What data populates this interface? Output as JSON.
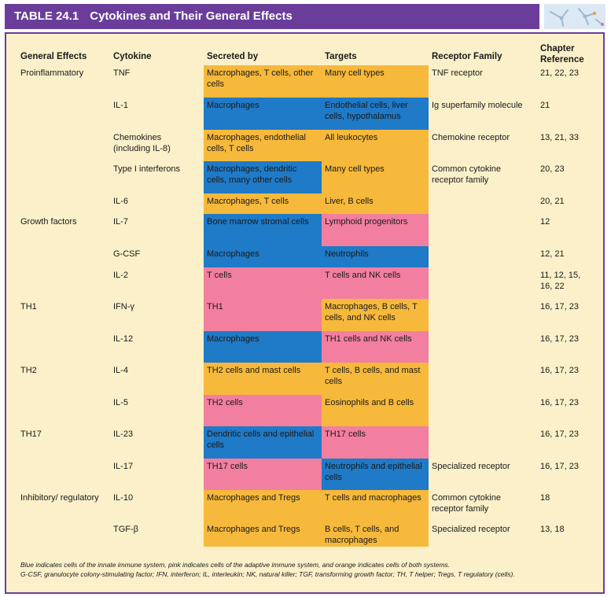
{
  "table": {
    "number": "TABLE 24.1",
    "title": "Cytokines and Their General Effects",
    "headers": {
      "effects": "General Effects",
      "cytokine": "Cytokine",
      "secreted": "Secreted by",
      "targets": "Targets",
      "receptor": "Receptor Family",
      "chapter": "Chapter Reference"
    },
    "rows": [
      {
        "effect": "Proinflammatory",
        "cytokine": "TNF",
        "secreted": "Macrophages, T cells, other cells",
        "secreted_color": "orange",
        "targets": "Many cell types",
        "targets_color": "orange",
        "receptor": "TNF receptor",
        "chapter": "21, 22, 23"
      },
      {
        "effect": "",
        "cytokine": "IL-1",
        "secreted": "Macrophages",
        "secreted_color": "blue",
        "targets": "Endothelial cells, liver cells, hypothalamus",
        "targets_color": "blue",
        "receptor": "Ig superfamily molecule",
        "chapter": "21"
      },
      {
        "effect": "",
        "cytokine": "Chemokines (including IL-8)",
        "secreted": "Macrophages, endothelial cells, T cells",
        "secreted_color": "orange",
        "targets": "All leukocytes",
        "targets_color": "orange",
        "receptor": "Chemokine receptor",
        "chapter": "13, 21, 33"
      },
      {
        "effect": "",
        "cytokine": "Type I interferons",
        "secreted": "Macrophages, dendritic cells, many other cells",
        "secreted_color": "blue",
        "targets": "Many cell types",
        "targets_color": "orange",
        "receptor": "Common cytokine receptor family",
        "chapter": "20, 23"
      },
      {
        "effect": "",
        "cytokine": "IL-6",
        "secreted": "Macrophages, T cells",
        "secreted_color": "orange",
        "targets": "Liver, B cells",
        "targets_color": "orange",
        "receptor": "",
        "chapter": "20, 21"
      },
      {
        "effect": "Growth factors",
        "cytokine": "IL-7",
        "secreted": "Bone marrow stromal cells",
        "secreted_color": "blue",
        "targets": "Lymphoid progenitors",
        "targets_color": "pink",
        "receptor": "",
        "chapter": "12"
      },
      {
        "effect": "",
        "cytokine": "G-CSF",
        "secreted": "Macrophages",
        "secreted_color": "blue",
        "targets": "Neutrophils",
        "targets_color": "blue",
        "receptor": "",
        "chapter": "12, 21"
      },
      {
        "effect": "",
        "cytokine": "IL-2",
        "secreted": "T cells",
        "secreted_color": "pink",
        "targets": "T cells and NK cells",
        "targets_color": "pink",
        "receptor": "",
        "chapter": "11, 12, 15, 16, 22"
      },
      {
        "effect": "TH1",
        "cytokine": "IFN-γ",
        "secreted": "TH1",
        "secreted_color": "pink",
        "targets": "Macrophages, B cells, T cells, and NK cells",
        "targets_color": "orange",
        "receptor": "",
        "chapter": "16, 17, 23"
      },
      {
        "effect": "",
        "cytokine": "IL-12",
        "secreted": "Macrophages",
        "secreted_color": "blue",
        "targets": "TH1 cells and NK cells",
        "targets_color": "pink",
        "receptor": "",
        "chapter": "16, 17, 23"
      },
      {
        "effect": "TH2",
        "cytokine": "IL-4",
        "secreted": "TH2 cells and mast cells",
        "secreted_color": "orange",
        "targets": "T cells, B cells, and mast cells",
        "targets_color": "orange",
        "receptor": "",
        "chapter": "16, 17, 23"
      },
      {
        "effect": "",
        "cytokine": "IL-5",
        "secreted": "TH2 cells",
        "secreted_color": "pink",
        "targets": "Eosinophils and B cells",
        "targets_color": "orange",
        "receptor": "",
        "chapter": "16, 17, 23"
      },
      {
        "effect": "TH17",
        "cytokine": "IL-23",
        "secreted": "Dendritic cells and epithelial cells",
        "secreted_color": "blue",
        "targets": "TH17 cells",
        "targets_color": "pink",
        "receptor": "",
        "chapter": "16, 17, 23"
      },
      {
        "effect": "",
        "cytokine": "IL-17",
        "secreted": "TH17 cells",
        "secreted_color": "pink",
        "targets": "Neutrophils and epithelial cells",
        "targets_color": "blue",
        "receptor": "Specialized receptor",
        "chapter": "16, 17, 23"
      },
      {
        "effect": "Inhibitory/ regulatory",
        "cytokine": "IL-10",
        "secreted": "Macrophages and Tregs",
        "secreted_color": "orange",
        "targets": "T cells and macrophages",
        "targets_color": "orange",
        "receptor": "Common cytokine receptor family",
        "chapter": "18"
      },
      {
        "effect": "",
        "cytokine": "TGF-β",
        "secreted": "Macrophages and Tregs",
        "secreted_color": "orange",
        "targets": "B cells, T cells, and macrophages",
        "targets_color": "orange",
        "receptor": "Specialized receptor",
        "chapter": "13, 18"
      }
    ]
  },
  "footnote": {
    "line1": "Blue indicates cells of the innate immune system, pink indicates cells of the adaptive immune system, and orange indicates cells of both systems.",
    "line2": "G-CSF, granulocyte colony-stimulating factor; IFN, interferon; IL, interleukin; NK, natural killer; TGF, transforming growth factor; TH, T helper; Tregs, T regulatory (cells)."
  },
  "colors": {
    "blue": "#1f7ac7",
    "pink": "#f27fa0",
    "orange": "#f7b93b",
    "header_purple": "#6a3d9a",
    "table_bg": "#fbf0c9"
  },
  "icons": {
    "header_thumbnail": "molecule-thumbnail-icon"
  }
}
